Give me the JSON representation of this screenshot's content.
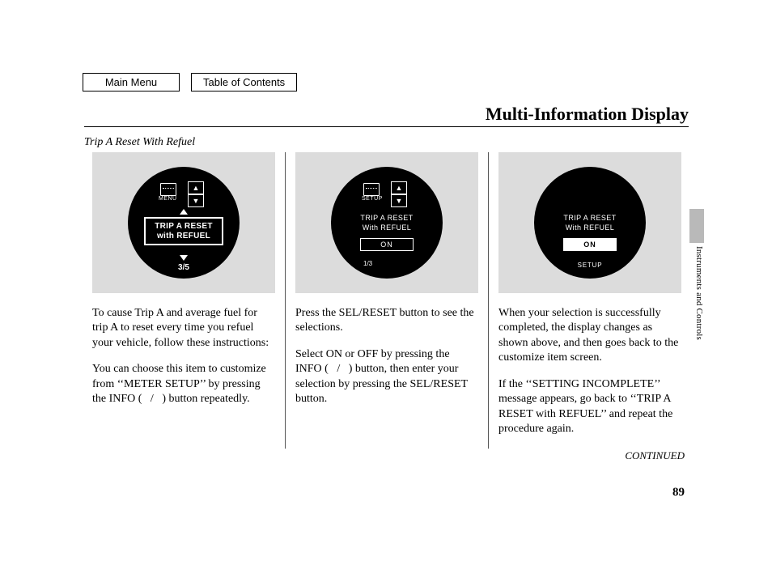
{
  "nav": {
    "main_menu": "Main Menu",
    "toc": "Table of Contents"
  },
  "title": "Multi-Information Display",
  "subtitle": "Trip A Reset With Refuel",
  "side_label": "Instruments and Controls",
  "continued": "CONTINUED",
  "page_number": "89",
  "col1": {
    "gauge": {
      "menu_label": "MENU",
      "box_line1": "TRIP A RESET",
      "box_line2": "with REFUEL",
      "page_indicator": "3/5"
    },
    "p1": "To cause Trip A and average fuel for trip A to reset every time you refuel your vehicle, follow these instructions:",
    "p2": "You can choose this item to customize from ‘‘METER SETUP’’ by pressing the INFO (   /   ) button repeatedly."
  },
  "col2": {
    "gauge": {
      "menu_label": "SETUP",
      "line1": "TRIP A RESET",
      "line2": "With REFUEL",
      "on_label": "ON",
      "frac": "1/3"
    },
    "p1": "Press the SEL/RESET button to see the selections.",
    "p2": "Select ON or OFF by pressing the INFO (   /   ) button, then enter your selection by pressing the SEL/RESET button."
  },
  "col3": {
    "gauge": {
      "line1": "TRIP A RESET",
      "line2": "With REFUEL",
      "on_label": "ON",
      "setup_label": "SETUP"
    },
    "p1": "When your selection is successfully completed, the display changes as shown above, and then goes back to the customize item screen.",
    "p2": "If the ‘‘SETTING INCOMPLETE’’ message appears, go back to ‘‘TRIP A RESET with REFUEL’’ and repeat the procedure again."
  }
}
